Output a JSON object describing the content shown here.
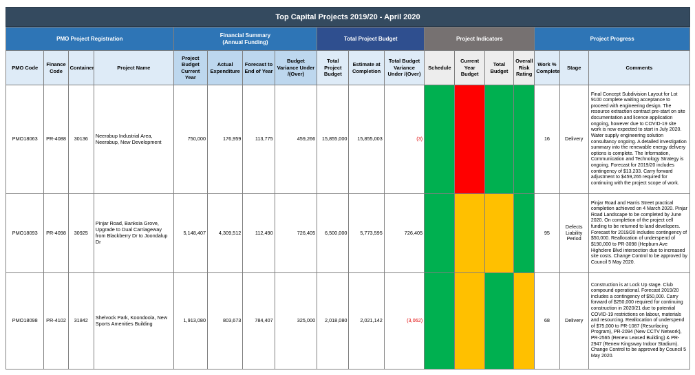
{
  "title": "Top Capital Projects 2019/20 - April 2020",
  "groups": {
    "pmo": "PMO Project Registration",
    "financial": "Financial Summary\n(Annual Funding)",
    "total_budget": "Total Project Budget",
    "indicators": "Project Indicators",
    "progress": "Project Progress"
  },
  "columns": {
    "pmo_code": "PMO Code",
    "finance_code": "Finance Code",
    "container": "Container",
    "project_name": "Project Name",
    "budget_current": "Project Budget Current Year",
    "actual": "Actual Expenditure",
    "forecast": "Forecast to End of Year",
    "variance": "Budget Variance Under /(Over)",
    "total_budget": "Total Project Budget",
    "estimate": "Estimate at Completion",
    "total_variance": "Total Budget Variance Under /(Over)",
    "schedule": "Schedule",
    "current_year_budget": "Current Year Budget",
    "total_budget_ind": "Total Budget",
    "overall_risk": "Overall Risk Rating",
    "work_pct": "Work % Complete",
    "stage": "Stage",
    "comments": "Comments"
  },
  "colors": {
    "green": "#00b050",
    "red": "#ff0000",
    "amber": "#ffc000"
  },
  "rows": [
    {
      "pmo_code": "PMO18063",
      "finance_code": "PR-4088",
      "container": "30136",
      "project_name": "Neerabup Industrial Area, Neerabup, New Development",
      "budget_current": "750,000",
      "actual": "176,959",
      "forecast": "113,775",
      "variance": "459,266",
      "total_budget": "15,855,000",
      "estimate": "15,855,003",
      "total_variance": "(3)",
      "total_variance_negative": true,
      "indicators": [
        "green",
        "red",
        "green",
        "green"
      ],
      "work_pct": "16",
      "stage": "Delivery",
      "comments": "Final Concept Subdivision Layout for Lot 9100 complete waiting acceptance to proceed with engineering design. The resource extraction contract pre-start on site documentation and licence application ongoing, however due to COVID-19 site work is now expected to start in July 2020. Water supply engineering solution consultancy ongoing. A detailed investigation summary into the renewable energy delivery options is complete. The Information, Communication and Technology Strategy is ongoing. Forecast for 2019/20 includes contingency of $13,233.  Carry forward adjustment to $459,265 required for continuing with the project scope of work."
    },
    {
      "pmo_code": "PMO18093",
      "finance_code": "PR-4098",
      "container": "30925",
      "project_name": "Pinjar Road, Banksia Grove, Upgrade to Dual Carriageway from Blackberry Dr to Joondalup Dr",
      "budget_current": "5,148,407",
      "actual": "4,309,512",
      "forecast": "112,490",
      "variance": "726,405",
      "total_budget": "6,500,000",
      "estimate": "5,773,595",
      "total_variance": "726,405",
      "total_variance_negative": false,
      "indicators": [
        "green",
        "amber",
        "amber",
        "green"
      ],
      "work_pct": "95",
      "stage": "Defects Liability Period",
      "comments": "Pinjar Road and Harris Street practical completion achieved on 4 March 2020. Pinjar Road Landscape to be completed by June 2020. On completion of the project cell funding to be returned to land developers. Forecast for 2019/20 includes contingency of $50,000. Reallocation of underspend of $190,000 to PR-3098 (Hepburn Ave Highclere Blvd intersection due to increased site costs. Change Control to be approved by Council 5 May 2020."
    },
    {
      "pmo_code": "PMO18098",
      "finance_code": "PR-4102",
      "container": "31842",
      "project_name": "Shelvock Park, Koondoola, New Sports Amenities Building",
      "budget_current": "1,913,080",
      "actual": "803,673",
      "forecast": "784,407",
      "variance": "325,000",
      "total_budget": "2,018,080",
      "estimate": "2,021,142",
      "total_variance": "(3,062)",
      "total_variance_negative": true,
      "indicators": [
        "green",
        "amber",
        "green",
        "amber"
      ],
      "work_pct": "68",
      "stage": "Delivery",
      "comments": "Construction is at Lock Up stage. Club compound operational. Forecast 2019/20 includes a contingency of $50,000. Carry forward of $250,000 required for continuing construction in 2020/21 due to potential COVID-19 restrictions on labour, materials and resourcing. Reallocation of underspend of $75,000 to PR-1087 (Resurfacing Program), PR-2094 (New CCTV Network), PR-2565 (Renew Leased Building) & PR-2947 (Renew Kingsway Indoor Stadium). Change Control to be approved by Council 5 May 2020."
    }
  ]
}
